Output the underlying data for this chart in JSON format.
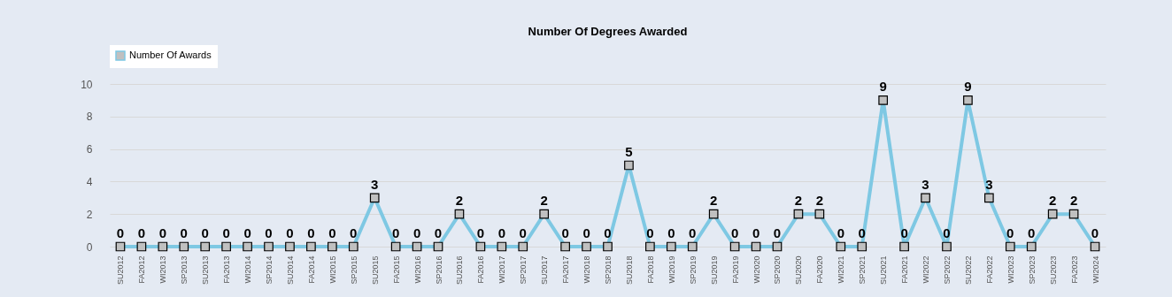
{
  "chart_data": {
    "type": "line",
    "title": "Number Of Degrees Awarded",
    "categories": [
      "SU2012",
      "FA2012",
      "WI2013",
      "SP2013",
      "SU2013",
      "FA2013",
      "WI2014",
      "SP2014",
      "SU2014",
      "FA2014",
      "WI2015",
      "SP2015",
      "SU2015",
      "FA2015",
      "WI2016",
      "SP2016",
      "SU2016",
      "FA2016",
      "WI2017",
      "SP2017",
      "SU2017",
      "FA2017",
      "WI2018",
      "SP2018",
      "SU2018",
      "FA2018",
      "WI2019",
      "SP2019",
      "SU2019",
      "FA2019",
      "WI2020",
      "SP2020",
      "SU2020",
      "FA2020",
      "WI2021",
      "SP2021",
      "SU2021",
      "FA2021",
      "WI2022",
      "SP2022",
      "SU2022",
      "FA2022",
      "WI2023",
      "SP2023",
      "SU2023",
      "FA2023",
      "WI2024"
    ],
    "series": [
      {
        "name": "Number Of Awards",
        "color": "#7ec8e3",
        "values": [
          0,
          0,
          0,
          0,
          0,
          0,
          0,
          0,
          0,
          0,
          0,
          0,
          3,
          0,
          0,
          0,
          2,
          0,
          0,
          0,
          2,
          0,
          0,
          0,
          5,
          0,
          0,
          0,
          2,
          0,
          0,
          0,
          2,
          2,
          0,
          0,
          9,
          0,
          3,
          0,
          9,
          3,
          0,
          0,
          2,
          2,
          0
        ]
      }
    ],
    "ylim": [
      0,
      10
    ],
    "yticks": [
      0,
      2,
      4,
      6,
      8,
      10
    ],
    "grid": "y",
    "legend": "top left",
    "marker": "square",
    "line_style": "solid",
    "data_labels": true
  }
}
